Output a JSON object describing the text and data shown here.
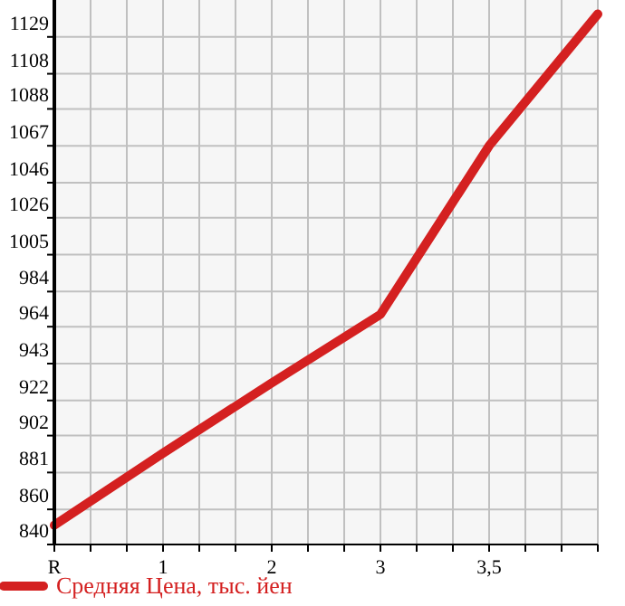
{
  "chart_data": {
    "type": "line",
    "categories": [
      "R",
      "1",
      "2",
      "3",
      "3,5",
      null
    ],
    "series": [
      {
        "name": "Средняя Цена, тыс. йен",
        "color": "#d42020",
        "values": [
          851,
          892,
          932,
          971,
          1067,
          1142
        ]
      }
    ],
    "ylim": [
      840,
      1150
    ],
    "yticks": [
      840,
      860,
      881,
      902,
      922,
      943,
      964,
      984,
      1005,
      1026,
      1046,
      1067,
      1088,
      1108,
      1129
    ],
    "grid": true,
    "legend": "bottom left",
    "marker": "none",
    "line_style": "solid"
  }
}
